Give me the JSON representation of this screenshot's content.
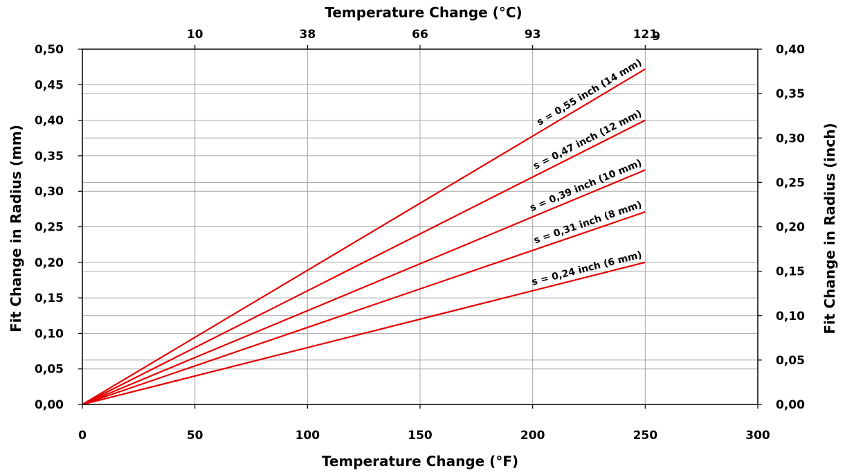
{
  "chart_data": {
    "type": "line",
    "x_bottom": {
      "label": "Temperature Change (°F)",
      "range": [
        0,
        300
      ],
      "ticks": [
        0,
        50,
        100,
        150,
        200,
        250,
        300
      ],
      "tick_labels": [
        "0",
        "50",
        "100",
        "150",
        "200",
        "250",
        "300"
      ]
    },
    "x_top": {
      "label": "Temperature Change (°C)",
      "tick_positions_f": [
        50,
        100,
        150,
        200,
        250
      ],
      "tick_labels": [
        "10",
        "38",
        "66",
        "93",
        "121"
      ],
      "corner_label": "9"
    },
    "y_left": {
      "label": "Fit Change in Radius (mm)",
      "range": [
        0,
        0.5
      ],
      "ticks": [
        0,
        0.05,
        0.1,
        0.15,
        0.2,
        0.25,
        0.3,
        0.35,
        0.4,
        0.45,
        0.5
      ],
      "tick_labels": [
        "0,00",
        "0,05",
        "0,10",
        "0,15",
        "0,20",
        "0,25",
        "0,30",
        "0,35",
        "0,40",
        "0,45",
        "0,50"
      ]
    },
    "y_right": {
      "label": "Fit Change in Radius (inch)",
      "range": [
        0,
        0.4
      ],
      "ticks": [
        0,
        0.05,
        0.1,
        0.15,
        0.2,
        0.25,
        0.3,
        0.35,
        0.4
      ],
      "tick_labels": [
        "0,00",
        "0,05",
        "0,10",
        "0,15",
        "0,20",
        "0,25",
        "0,30",
        "0,35",
        "0,40"
      ]
    },
    "grid": true,
    "colors": {
      "series": "#e60000",
      "grid": "#a6a6a6",
      "frame": "#000000"
    },
    "series": [
      {
        "name": "s = 0,55 inch (14 mm)",
        "x": [
          0,
          250
        ],
        "y": [
          0,
          0.472
        ]
      },
      {
        "name": "s = 0,47 inch (12 mm)",
        "x": [
          0,
          250
        ],
        "y": [
          0,
          0.4
        ]
      },
      {
        "name": "s = 0,39 inch (10 mm)",
        "x": [
          0,
          250
        ],
        "y": [
          0,
          0.33
        ]
      },
      {
        "name": "s = 0,31 inch (8 mm)",
        "x": [
          0,
          250
        ],
        "y": [
          0,
          0.271
        ]
      },
      {
        "name": "s = 0,24 inch (6 mm)",
        "x": [
          0,
          250
        ],
        "y": [
          0,
          0.2
        ]
      }
    ]
  }
}
